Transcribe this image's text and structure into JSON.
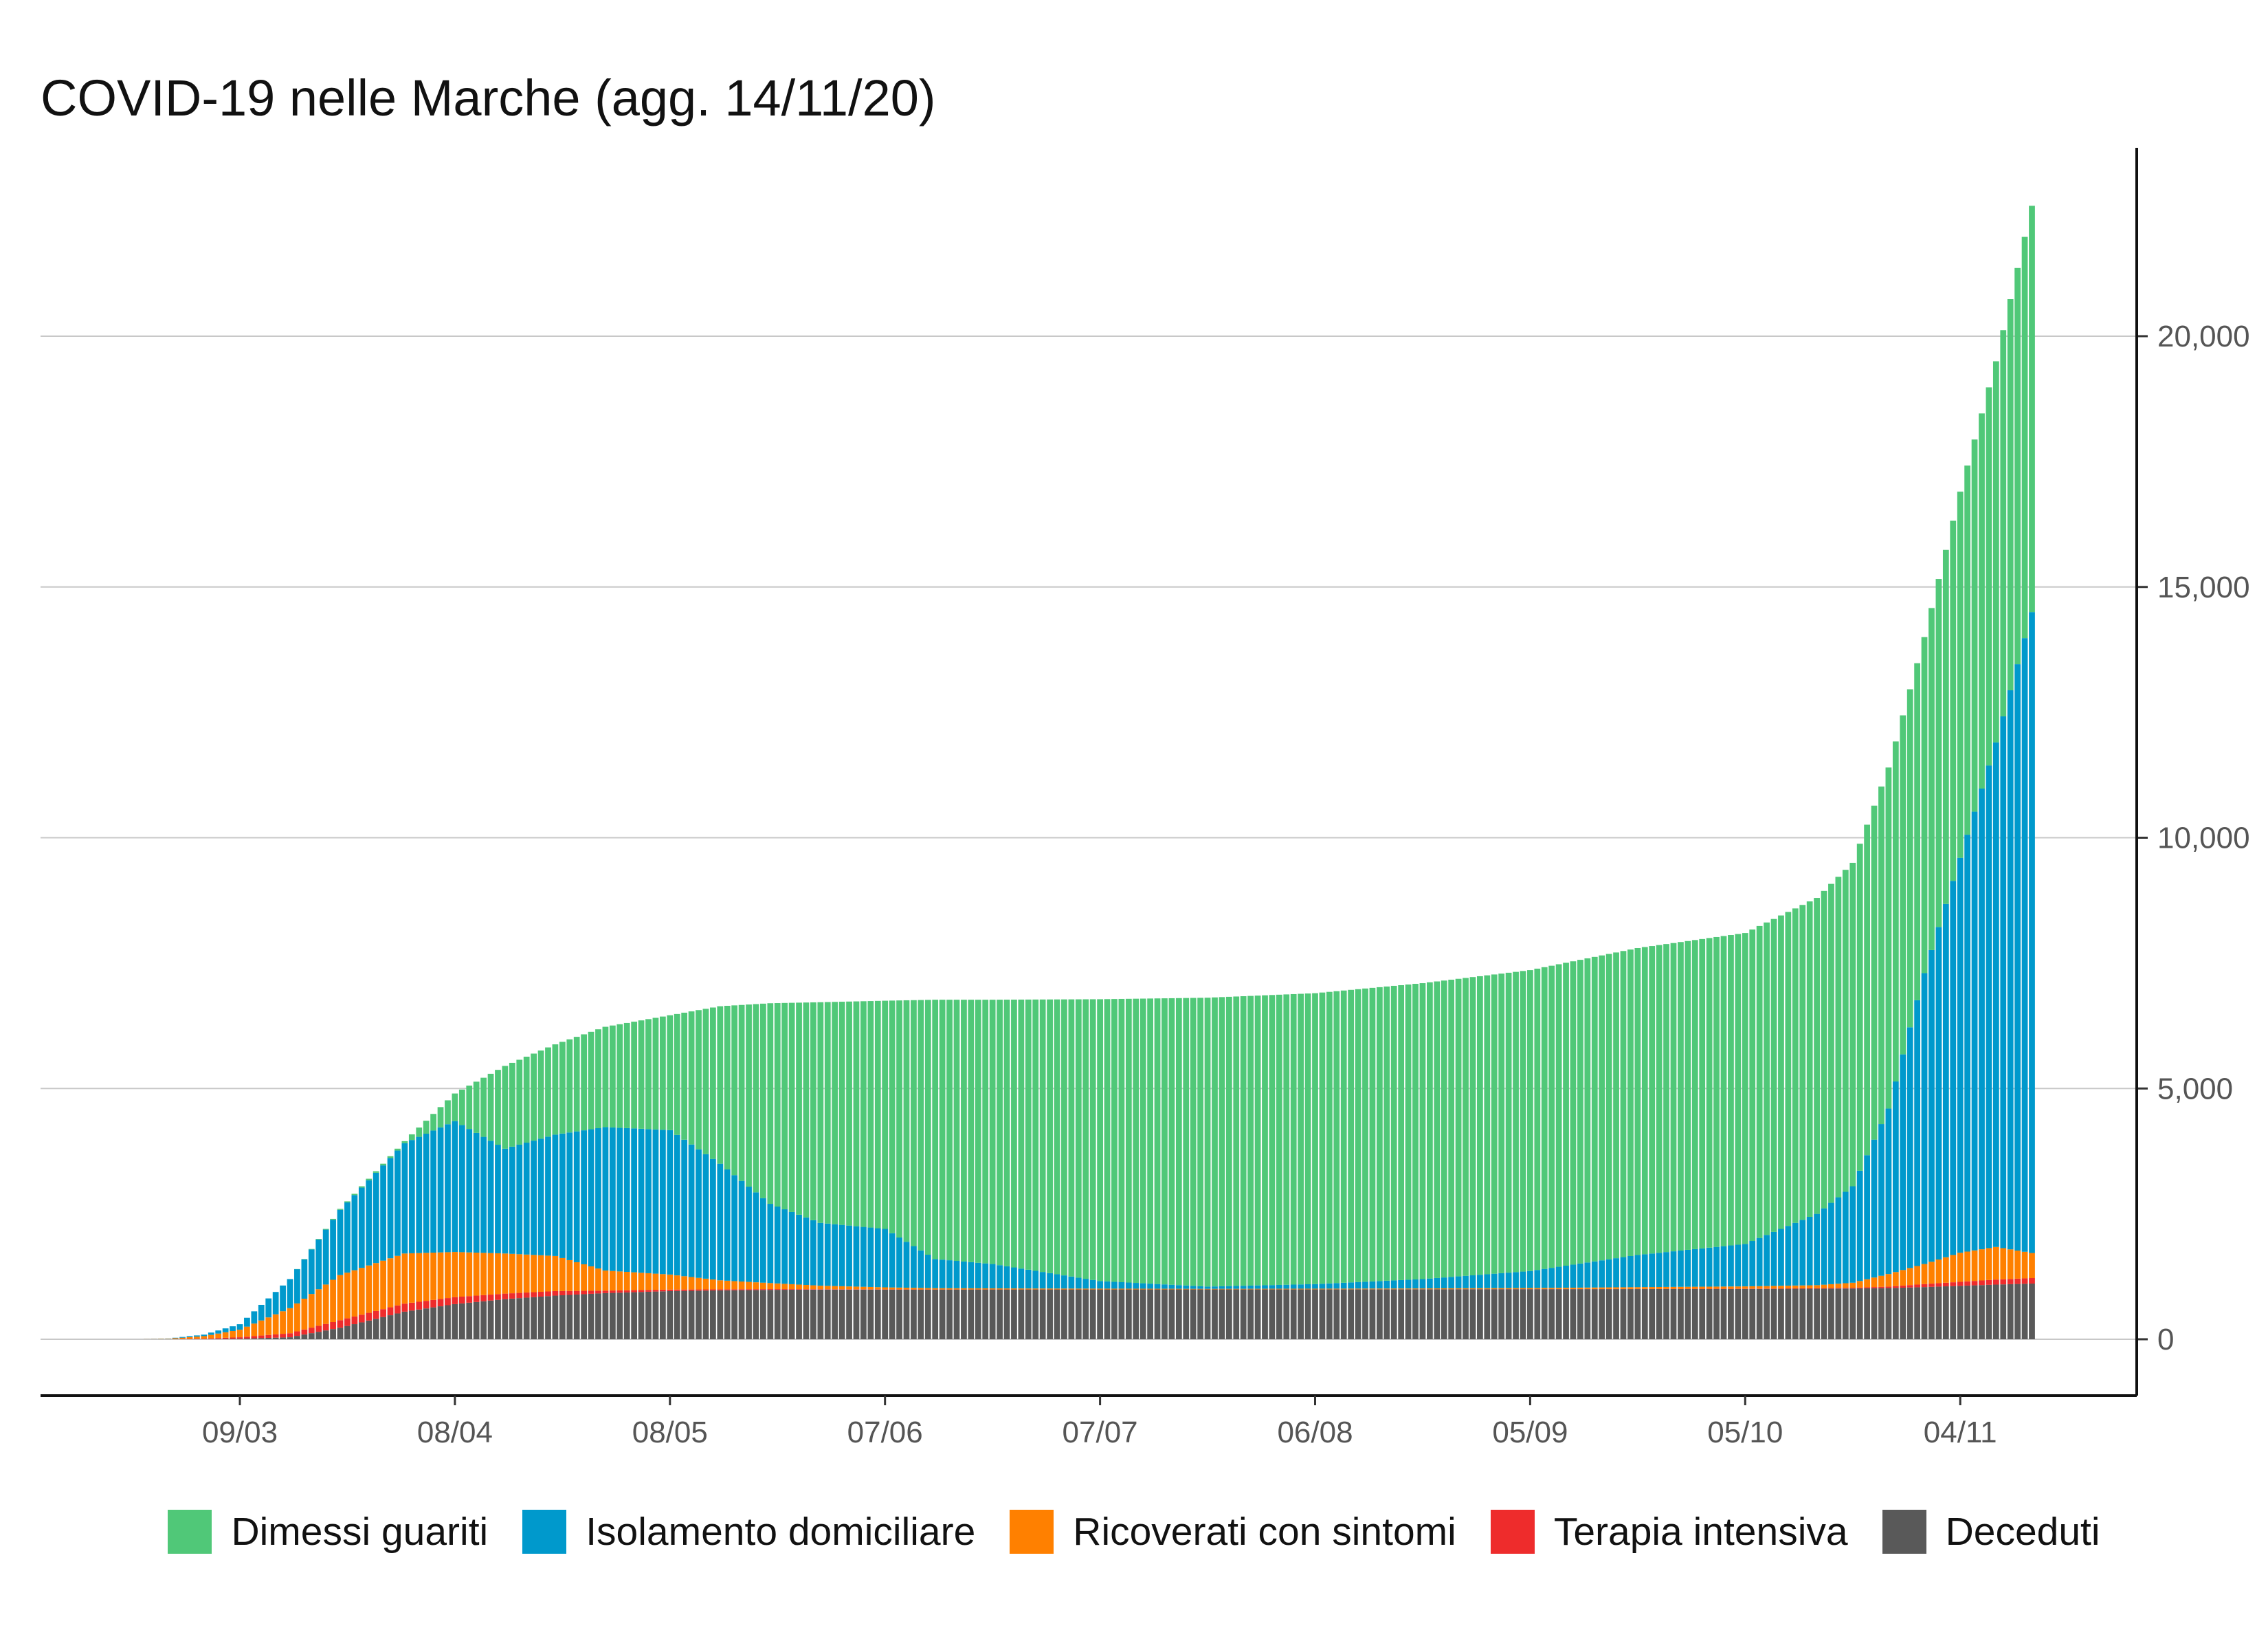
{
  "chart_data": {
    "type": "bar",
    "stacked": true,
    "title": "COVID-19 nelle Marche (agg. 14/11/20)",
    "xlabel": "",
    "ylabel": "",
    "ylim": [
      -1100,
      24000
    ],
    "yticks": [
      0,
      5000,
      10000,
      15000,
      20000
    ],
    "ytick_labels": [
      "0",
      "5,000",
      "10,000",
      "15,000",
      "20,000"
    ],
    "xticks": [
      "09/03",
      "08/04",
      "08/05",
      "07/06",
      "07/07",
      "06/08",
      "05/09",
      "05/10",
      "04/11"
    ],
    "year": 2020,
    "date_range": [
      "24/02",
      "14/11"
    ],
    "grid": "horizontal",
    "legend_position": "bottom",
    "series": [
      {
        "name": "Deceduti",
        "color": "#595959"
      },
      {
        "name": "Terapia intensiva",
        "color": "#ee2c2c"
      },
      {
        "name": "Ricoverati con sintomi",
        "color": "#ff8000"
      },
      {
        "name": "Isolamento domiciliare",
        "color": "#0099cc"
      },
      {
        "name": "Dimessi guariti",
        "color": "#50c878"
      }
    ],
    "legend_order": [
      "Dimessi guariti",
      "Isolamento domiciliare",
      "Ricoverati con sintomi",
      "Terapia intensiva",
      "Deceduti"
    ],
    "note": "values are estimated keyframes [Deceduti, Terapia intensiva, Ricoverati con sintomi, Isolamento domiciliare, Dimessi guariti]; daily bars linearly interpolated",
    "keyframes": [
      {
        "date": "24/02",
        "values": [
          0,
          0,
          0,
          0,
          0
        ]
      },
      {
        "date": "28/02",
        "values": [
          0,
          2,
          8,
          5,
          0
        ]
      },
      {
        "date": "04/03",
        "values": [
          2,
          10,
          50,
          30,
          0
        ]
      },
      {
        "date": "09/03",
        "values": [
          10,
          30,
          150,
          110,
          0
        ]
      },
      {
        "date": "16/03",
        "values": [
          40,
          80,
          500,
          580,
          0
        ]
      },
      {
        "date": "23/03",
        "values": [
          230,
          150,
          900,
          1300,
          20
        ]
      },
      {
        "date": "01/04",
        "values": [
          550,
          160,
          1000,
          2200,
          40
        ]
      },
      {
        "date": "08/04",
        "values": [
          700,
          140,
          900,
          2610,
          550
        ]
      },
      {
        "date": "15/04",
        "values": [
          800,
          110,
          800,
          2090,
          1650
        ]
      },
      {
        "date": "22/04",
        "values": [
          870,
          90,
          700,
          2420,
          1800
        ]
      },
      {
        "date": "29/04",
        "values": [
          920,
          50,
          400,
          2860,
          2000
        ]
      },
      {
        "date": "08/05",
        "values": [
          960,
          30,
          300,
          2880,
          2290
        ]
      },
      {
        "date": "15/05",
        "values": [
          975,
          20,
          180,
          2325,
          3140
        ]
      },
      {
        "date": "22/05",
        "values": [
          985,
          15,
          120,
          1580,
          4000
        ]
      },
      {
        "date": "29/05",
        "values": [
          990,
          8,
          70,
          1252,
          4400
        ]
      },
      {
        "date": "07/06",
        "values": [
          990,
          5,
          40,
          1165,
          4550
        ]
      },
      {
        "date": "14/06",
        "values": [
          990,
          3,
          25,
          582,
          5170
        ]
      },
      {
        "date": "22/06",
        "values": [
          992,
          2,
          20,
          486,
          5270
        ]
      },
      {
        "date": "07/07",
        "values": [
          993,
          1,
          15,
          151,
          5620
        ]
      },
      {
        "date": "22/07",
        "values": [
          994,
          1,
          10,
          45,
          5760
        ]
      },
      {
        "date": "06/08",
        "values": [
          995,
          1,
          12,
          92,
          5800
        ]
      },
      {
        "date": "21/08",
        "values": [
          996,
          2,
          15,
          187,
          5900
        ]
      },
      {
        "date": "05/09",
        "values": [
          998,
          3,
          20,
          339,
          6000
        ]
      },
      {
        "date": "20/09",
        "values": [
          1000,
          4,
          35,
          641,
          6120
        ]
      },
      {
        "date": "05/10",
        "values": [
          1003,
          6,
          45,
          846,
          6200
        ]
      },
      {
        "date": "15/10",
        "values": [
          1008,
          10,
          60,
          1422,
          6300
        ]
      },
      {
        "date": "20/10",
        "values": [
          1012,
          15,
          100,
          1923,
          6450
        ]
      },
      {
        "date": "25/10",
        "values": [
          1020,
          30,
          250,
          3300,
          6800
        ]
      },
      {
        "date": "30/10",
        "values": [
          1040,
          60,
          400,
          5800,
          6700
        ]
      },
      {
        "date": "04/11",
        "values": [
          1065,
          80,
          580,
          7875,
          7300
        ]
      },
      {
        "date": "09/11",
        "values": [
          1090,
          100,
          650,
          10060,
          7600
        ]
      },
      {
        "date": "14/11",
        "values": [
          1110,
          110,
          500,
          12780,
          8100
        ]
      }
    ]
  }
}
